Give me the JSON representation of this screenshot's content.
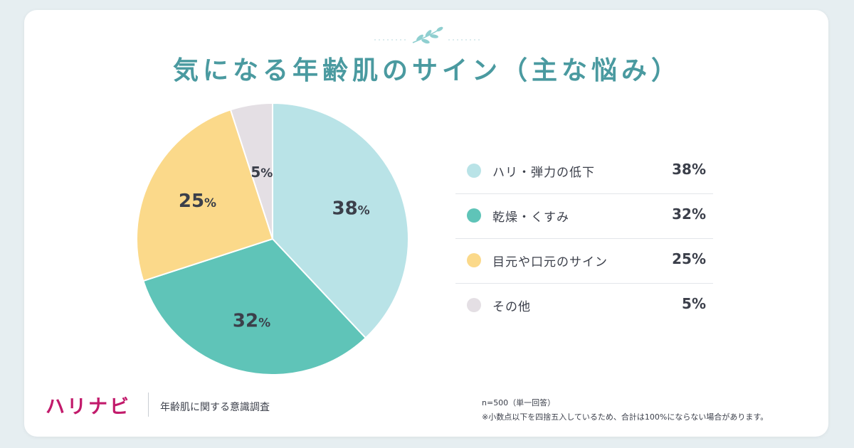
{
  "title": "気になる年齢肌のサイン（主な悩み）",
  "brand": "ハリナビ",
  "survey_name": "年齢肌に関する意識調査",
  "notes": {
    "sample": "n=500（単一回答）",
    "rounding": "※小数点以下を四捨五入しているため、合計は100%にならない場合があります。"
  },
  "chart_data": {
    "type": "pie",
    "title": "気になる年齢肌のサイン（主な悩み）",
    "unit": "%",
    "legend_position": "right",
    "slices": [
      {
        "label": "ハリ・弾力の低下",
        "value": 38,
        "display": "38%",
        "color": "#b9e3e7"
      },
      {
        "label": "乾燥・くすみ",
        "value": 32,
        "display": "32%",
        "color": "#5fc4b8"
      },
      {
        "label": "目元や口元のサイン",
        "value": 25,
        "display": "25%",
        "color": "#fbd98a"
      },
      {
        "label": "その他",
        "value": 5,
        "display": "5%",
        "color": "#e4dfe4"
      }
    ]
  }
}
